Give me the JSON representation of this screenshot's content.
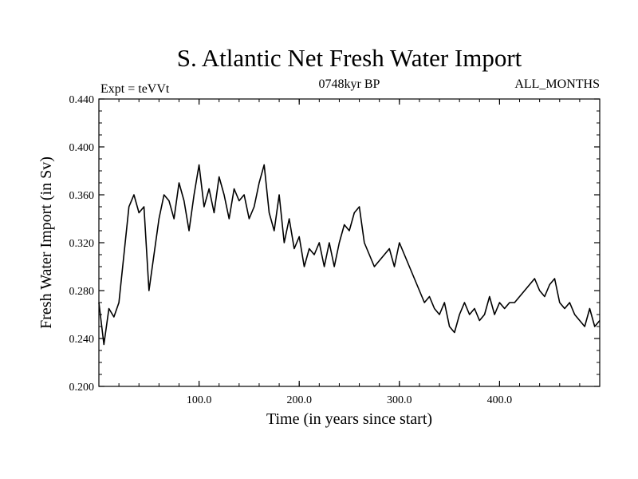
{
  "chart_data": {
    "type": "line",
    "title": "S. Atlantic Net Fresh Water Import",
    "subtitle_left": "Expt = teVVt",
    "subtitle_center": "0748kyr BP",
    "subtitle_right": "ALL_MONTHS",
    "xlabel": "Time (in years since start)",
    "ylabel": "Fresh Water Import (in Sv)",
    "xlim": [
      0,
      500
    ],
    "ylim": [
      0.2,
      0.44
    ],
    "x_ticks": [
      100,
      200,
      300,
      400
    ],
    "x_tick_labels": [
      "100.0",
      "200.0",
      "300.0",
      "400.0"
    ],
    "y_ticks": [
      0.2,
      0.24,
      0.28,
      0.32,
      0.36,
      0.4,
      0.44
    ],
    "y_tick_labels": [
      "0.200",
      "0.240",
      "0.280",
      "0.320",
      "0.360",
      "0.400",
      "0.440"
    ],
    "grid": false,
    "line_color": "#000000",
    "series": [
      {
        "x": [
          0,
          5,
          10,
          15,
          20,
          25,
          30,
          35,
          40,
          45,
          50,
          55,
          60,
          65,
          70,
          75,
          80,
          85,
          90,
          95,
          100,
          105,
          110,
          115,
          120,
          125,
          130,
          135,
          140,
          145,
          150,
          155,
          160,
          165,
          170,
          175,
          180,
          185,
          190,
          195,
          200,
          205,
          210,
          215,
          220,
          225,
          230,
          235,
          240,
          245,
          250,
          255,
          260,
          265,
          270,
          275,
          280,
          285,
          290,
          295,
          300,
          305,
          310,
          315,
          320,
          325,
          330,
          335,
          340,
          345,
          350,
          355,
          360,
          365,
          370,
          375,
          380,
          385,
          390,
          395,
          400,
          405,
          410,
          415,
          420,
          425,
          430,
          435,
          440,
          445,
          450,
          455,
          460,
          465,
          470,
          475,
          480,
          485,
          490,
          495,
          500
        ],
        "values": [
          0.27,
          0.235,
          0.265,
          0.258,
          0.27,
          0.31,
          0.35,
          0.36,
          0.345,
          0.35,
          0.28,
          0.31,
          0.34,
          0.36,
          0.355,
          0.34,
          0.37,
          0.355,
          0.33,
          0.36,
          0.385,
          0.35,
          0.365,
          0.345,
          0.375,
          0.36,
          0.34,
          0.365,
          0.355,
          0.36,
          0.34,
          0.35,
          0.37,
          0.385,
          0.345,
          0.33,
          0.36,
          0.32,
          0.34,
          0.315,
          0.325,
          0.3,
          0.315,
          0.31,
          0.32,
          0.3,
          0.32,
          0.3,
          0.32,
          0.335,
          0.33,
          0.345,
          0.35,
          0.32,
          0.31,
          0.3,
          0.305,
          0.31,
          0.315,
          0.3,
          0.32,
          0.31,
          0.3,
          0.29,
          0.28,
          0.27,
          0.275,
          0.265,
          0.26,
          0.27,
          0.25,
          0.245,
          0.26,
          0.27,
          0.26,
          0.265,
          0.255,
          0.26,
          0.275,
          0.26,
          0.27,
          0.265,
          0.27,
          0.27,
          0.275,
          0.28,
          0.285,
          0.29,
          0.28,
          0.275,
          0.285,
          0.29,
          0.27,
          0.265,
          0.27,
          0.26,
          0.255,
          0.25,
          0.265,
          0.25,
          0.255
        ]
      }
    ]
  }
}
